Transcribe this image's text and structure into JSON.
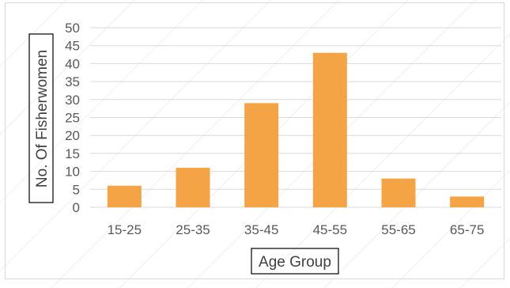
{
  "chart_data": {
    "type": "bar",
    "title": "",
    "xlabel": "Age Group",
    "ylabel": "No. Of Fisherwomen",
    "categories": [
      "15-25",
      "25-35",
      "35-45",
      "45-55",
      "55-65",
      "65-75"
    ],
    "values": [
      6,
      11,
      29,
      43,
      8,
      3
    ],
    "ylim": [
      0,
      50
    ],
    "yticks": [
      "0",
      "5",
      "10",
      "15",
      "20",
      "25",
      "30",
      "35",
      "40",
      "45",
      "50"
    ],
    "grid": true,
    "legend": "none",
    "bar_color": "#F4A444",
    "grid_color": "#D9D9D9"
  }
}
